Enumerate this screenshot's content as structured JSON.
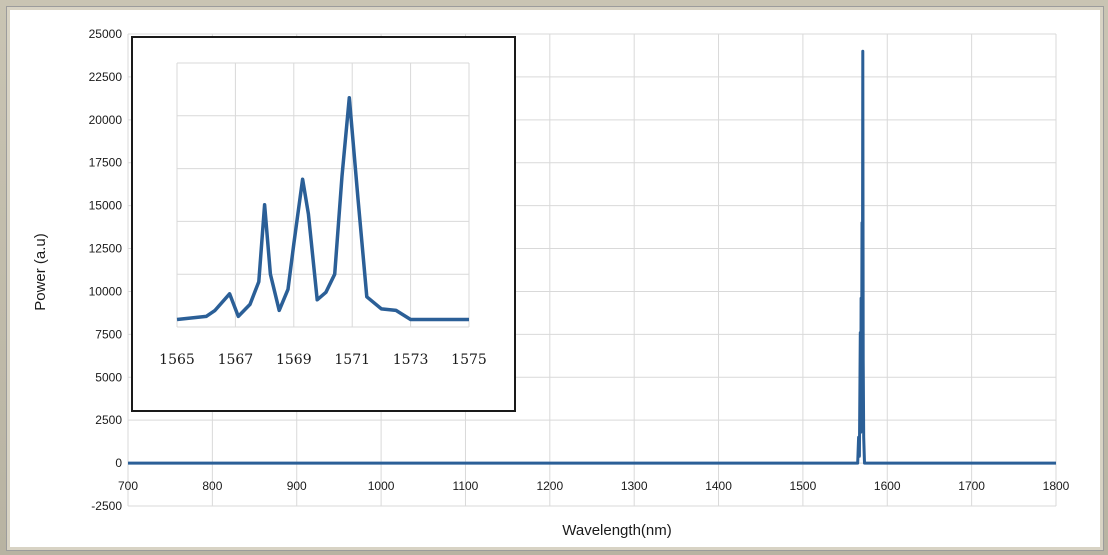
{
  "chart_data": [
    {
      "type": "line",
      "title": "",
      "xlabel": "Wavelength(nm)",
      "ylabel": "Power (a.u)",
      "xlim": [
        700,
        1800
      ],
      "ylim": [
        -2500,
        25000
      ],
      "x_ticks": [
        "700",
        "800",
        "900",
        "1000",
        "1100",
        "1200",
        "1300",
        "1400",
        "1500",
        "1600",
        "1700",
        "1800"
      ],
      "y_ticks": [
        "25000",
        "22500",
        "20000",
        "17500",
        "15000",
        "12500",
        "10000",
        "7500",
        "5000",
        "2500",
        "0",
        "-2500"
      ],
      "grid": true,
      "line_color": "#2b5f97",
      "series": [
        {
          "x": [
            700,
            1560,
            1565,
            1566,
            1567,
            1568,
            1568.5,
            1569,
            1569.5,
            1570,
            1570.5,
            1571,
            1571.5,
            1572,
            1573,
            1575,
            1580,
            1800
          ],
          "y": [
            0,
            0,
            0,
            1500,
            400,
            7600,
            1800,
            9600,
            2500,
            14000,
            7000,
            24000,
            6000,
            1500,
            0,
            0,
            0,
            0
          ]
        }
      ]
    },
    {
      "type": "line",
      "title": "",
      "xlabel": "",
      "ylabel": "",
      "xlim": [
        1565,
        1575
      ],
      "ylim": [
        7500,
        25000
      ],
      "x_ticks": [
        "1565",
        "1567",
        "1569",
        "1571",
        "1573",
        "1575"
      ],
      "grid": true,
      "line_color": "#2b5f97",
      "series": [
        {
          "x": [
            1565,
            1566,
            1566.3,
            1566.8,
            1567.1,
            1567.5,
            1567.8,
            1568,
            1568.2,
            1568.5,
            1568.8,
            1569,
            1569.3,
            1569.5,
            1569.8,
            1570.1,
            1570.4,
            1570.65,
            1570.9,
            1571.2,
            1571.5,
            1572,
            1572.5,
            1573,
            1575
          ],
          "y": [
            8000,
            8200,
            8600,
            9700,
            8200,
            9000,
            10500,
            15600,
            11000,
            8600,
            10000,
            13000,
            17300,
            15000,
            9300,
            9800,
            11000,
            17500,
            22700,
            16000,
            9500,
            8700,
            8600,
            8000,
            8000
          ]
        }
      ]
    }
  ]
}
